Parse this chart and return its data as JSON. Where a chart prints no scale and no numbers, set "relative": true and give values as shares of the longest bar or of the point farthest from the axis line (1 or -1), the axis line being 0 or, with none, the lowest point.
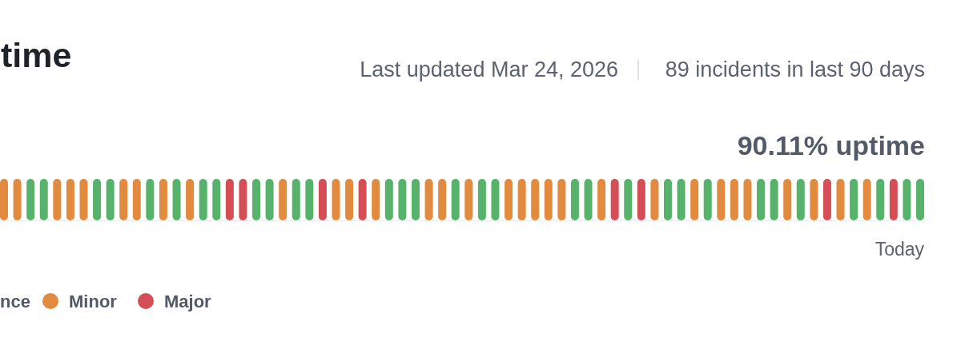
{
  "chart_data": {
    "type": "bar",
    "title": "time",
    "relative": true,
    "stacked": true,
    "categories": [
      null,
      null,
      null,
      null,
      null,
      null,
      null,
      null,
      null,
      null,
      null,
      null,
      null,
      null,
      null,
      null,
      null,
      null,
      null,
      null,
      null,
      null,
      null,
      null,
      null,
      null,
      null,
      null,
      null,
      null,
      null,
      null,
      null,
      null,
      null,
      null,
      null,
      null,
      null,
      null,
      null,
      null,
      null,
      null,
      null,
      null,
      null,
      null,
      null,
      null,
      null,
      null,
      null,
      null,
      null,
      null,
      null,
      null,
      null,
      null,
      null,
      null,
      null,
      null,
      null,
      null,
      null,
      null,
      null,
      null
    ],
    "series": [
      {
        "color": "#57b36b",
        "values": [
          null,
          null,
          1,
          1,
          null,
          null,
          null,
          1,
          1,
          null,
          null,
          1,
          null,
          1,
          null,
          1,
          1,
          null,
          null,
          1,
          1,
          null,
          1,
          1,
          null,
          null,
          null,
          null,
          null,
          1,
          1,
          1,
          null,
          null,
          1,
          null,
          1,
          1,
          null,
          null,
          null,
          null,
          null,
          1,
          1,
          null,
          null,
          1,
          null,
          null,
          1,
          1,
          null,
          1,
          null,
          null,
          null,
          1,
          1,
          null,
          1,
          null,
          null,
          null,
          1,
          null,
          1,
          null,
          1,
          1
        ]
      },
      {
        "name": "Minor",
        "color": "#e28b3f",
        "values": [
          1,
          1,
          null,
          null,
          1,
          1,
          1,
          null,
          null,
          1,
          1,
          null,
          1,
          null,
          1,
          null,
          null,
          null,
          null,
          null,
          null,
          1,
          null,
          null,
          null,
          1,
          1,
          null,
          1,
          null,
          null,
          null,
          1,
          1,
          null,
          1,
          null,
          null,
          1,
          1,
          1,
          1,
          1,
          null,
          null,
          1,
          null,
          null,
          null,
          1,
          null,
          null,
          1,
          null,
          1,
          1,
          1,
          null,
          null,
          1,
          null,
          1,
          null,
          1,
          null,
          1,
          null,
          null,
          null,
          null
        ]
      },
      {
        "name": "Major",
        "color": "#d54e56",
        "values": [
          null,
          null,
          null,
          null,
          null,
          null,
          null,
          null,
          null,
          null,
          null,
          null,
          null,
          null,
          null,
          null,
          null,
          1,
          1,
          null,
          null,
          null,
          null,
          null,
          1,
          null,
          null,
          1,
          null,
          null,
          null,
          null,
          null,
          null,
          null,
          null,
          null,
          null,
          null,
          null,
          null,
          null,
          null,
          null,
          null,
          null,
          1,
          null,
          1,
          null,
          null,
          null,
          null,
          null,
          null,
          null,
          null,
          null,
          null,
          null,
          null,
          null,
          1,
          null,
          null,
          null,
          null,
          1,
          null,
          null
        ]
      }
    ],
    "legend": "bottom left",
    "annotations": [
      "Last updated Mar 24, 2026",
      "89 incidents in last 90 days",
      "90.11% uptime",
      "Today",
      "nce"
    ]
  }
}
